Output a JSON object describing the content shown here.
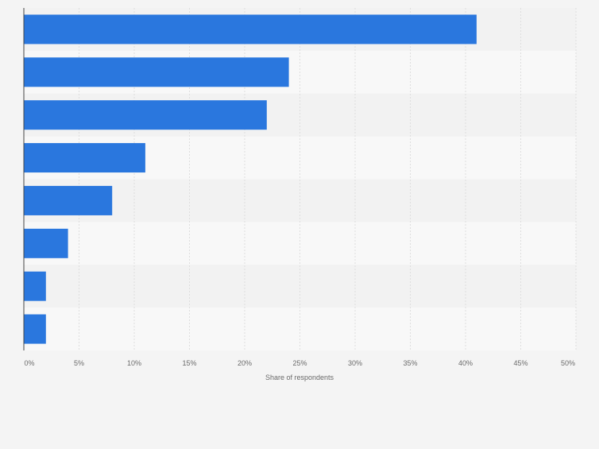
{
  "chart_data": {
    "type": "bar",
    "orientation": "horizontal",
    "categories": [
      "",
      "",
      "",
      "",
      "",
      "",
      "",
      ""
    ],
    "values": [
      41,
      24,
      22,
      11,
      8,
      4,
      2,
      2
    ],
    "xlabel": "Share of respondents",
    "ylabel": "",
    "xlim": [
      0,
      50
    ],
    "xticks": [
      "0%",
      "5%",
      "10%",
      "15%",
      "20%",
      "25%",
      "30%",
      "35%",
      "40%",
      "45%",
      "50%"
    ],
    "grid": true,
    "bar_color": "#2a77de",
    "band_colors": [
      "#f2f2f2",
      "#f8f8f8"
    ]
  }
}
